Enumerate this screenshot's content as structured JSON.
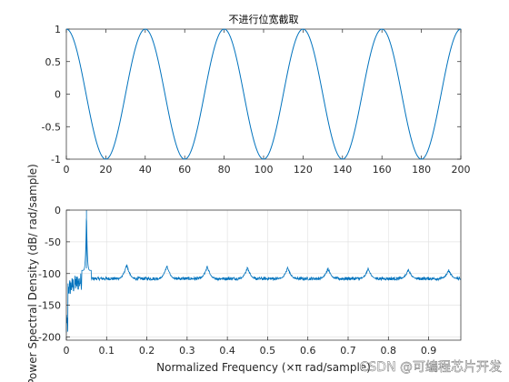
{
  "chart_data": [
    {
      "type": "line",
      "title": "不进行位宽截取",
      "xlabel": "",
      "ylabel": "",
      "xlim": [
        0,
        200
      ],
      "ylim": [
        -1,
        1
      ],
      "xticks": [
        "0",
        "20",
        "40",
        "60",
        "80",
        "100",
        "120",
        "140",
        "160",
        "180",
        "200"
      ],
      "yticks": [
        "1",
        "0.5",
        "0",
        "-0.5",
        "-1"
      ],
      "grid": false,
      "series": [
        {
          "color": "#0072bd",
          "function": "cos(2*pi*(x-40)/40)",
          "x_range": [
            0,
            200
          ],
          "period": 40,
          "peak_x": [
            0,
            40,
            80,
            120,
            160,
            200
          ],
          "trough_x": [
            20,
            60,
            100,
            140,
            180
          ]
        }
      ]
    },
    {
      "type": "line",
      "title": "",
      "xlabel": "Normalized Frequency  (×π rad/sample)",
      "ylabel": "Power Spectral Density (dB/ rad/sample)",
      "xlim": [
        0,
        0.98
      ],
      "ylim": [
        -205,
        0
      ],
      "xticks": [
        "0",
        "0.1",
        "0.2",
        "0.3",
        "0.4",
        "0.5",
        "0.6",
        "0.7",
        "0.8",
        "0.9"
      ],
      "yticks": [
        "0",
        "-50",
        "-100",
        "-150",
        "-200"
      ],
      "grid": true,
      "series": [
        {
          "color": "#0072bd",
          "noise_floor_db": -108,
          "main_peak": {
            "x": 0.05,
            "y": 0
          },
          "spurs": [
            {
              "x": 0.15,
              "y": -87
            },
            {
              "x": 0.25,
              "y": -88
            },
            {
              "x": 0.35,
              "y": -89
            },
            {
              "x": 0.45,
              "y": -91
            },
            {
              "x": 0.55,
              "y": -91
            },
            {
              "x": 0.65,
              "y": -92
            },
            {
              "x": 0.75,
              "y": -93
            },
            {
              "x": 0.85,
              "y": -94
            },
            {
              "x": 0.95,
              "y": -95
            }
          ],
          "low_freq_min_db": -205
        }
      ]
    }
  ],
  "watermark": "CSDN @可编程芯片开发"
}
